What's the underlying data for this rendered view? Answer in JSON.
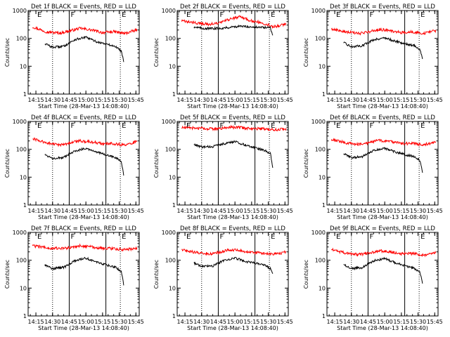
{
  "figure": {
    "background": "#ffffff",
    "axis_color": "#000000",
    "series_colors": {
      "events": "#000000",
      "lld": "#ff0000"
    }
  },
  "chart_data": [
    {
      "type": "line",
      "title": "Det 1f BLACK = Events, RED = LLD",
      "xlabel": "Start Time (28-Mar-13 14:08:40)",
      "ylabel": "Counts/sec",
      "x_tick_labels": [
        "14:15",
        "14:30",
        "14:45",
        "15:00",
        "15:15",
        "15:30",
        "15:45"
      ],
      "y_tick_labels": [
        "1",
        "10",
        "100",
        "1000"
      ],
      "ylim": [
        1,
        1000
      ],
      "log_y": true,
      "markers": [
        {
          "letter": "E",
          "time": "14:15"
        },
        {
          "letter": "F",
          "time": "14:45"
        },
        {
          "letter": "E",
          "time": "15:31"
        }
      ],
      "vertical_lines": [
        {
          "time": "14:30",
          "style": "dotted"
        },
        {
          "time": "14:45",
          "style": "solid"
        },
        {
          "time": "15:18",
          "style": "solid"
        },
        {
          "time": "15:31",
          "style": "dotted"
        }
      ],
      "series": [
        {
          "name": "LLD",
          "color": "#ff0000",
          "x": [
            "14:12",
            "14:25",
            "14:37",
            "14:45",
            "14:55",
            "15:05",
            "15:15",
            "15:25",
            "15:35",
            "15:46"
          ],
          "values": [
            260,
            170,
            155,
            185,
            230,
            200,
            160,
            175,
            150,
            200
          ]
        },
        {
          "name": "Events",
          "color": "#000000",
          "x_start": "14:23",
          "x_end": "15:34",
          "x": [
            "14:23",
            "14:30",
            "14:40",
            "14:50",
            "15:00",
            "15:10",
            "15:20",
            "15:27",
            "15:32",
            "15:34"
          ],
          "values": [
            65,
            48,
            52,
            90,
            110,
            75,
            60,
            50,
            35,
            15
          ]
        }
      ]
    },
    {
      "type": "line",
      "title": "Det 2f BLACK = Events, RED = LLD",
      "xlabel": "Start Time (28-Mar-13 14:08:40)",
      "ylabel": "Counts/sec",
      "x_tick_labels": [
        "14:15",
        "14:30",
        "14:45",
        "15:00",
        "15:15",
        "15:30",
        "15:45"
      ],
      "y_tick_labels": [
        "1",
        "10",
        "100",
        "1000"
      ],
      "ylim": [
        1,
        1000
      ],
      "log_y": true,
      "markers": [
        {
          "letter": "E",
          "time": "14:15"
        },
        {
          "letter": "F",
          "time": "14:45"
        },
        {
          "letter": "E",
          "time": "15:31"
        }
      ],
      "vertical_lines": [
        {
          "time": "14:30",
          "style": "dotted"
        },
        {
          "time": "14:45",
          "style": "solid"
        },
        {
          "time": "15:18",
          "style": "solid"
        },
        {
          "time": "15:31",
          "style": "dotted"
        }
      ],
      "series": [
        {
          "name": "LLD",
          "color": "#ff0000",
          "x": [
            "14:12",
            "14:25",
            "14:37",
            "14:45",
            "14:55",
            "15:05",
            "15:15",
            "15:25",
            "15:35",
            "15:46"
          ],
          "values": [
            420,
            360,
            320,
            350,
            480,
            600,
            420,
            360,
            260,
            330
          ]
        },
        {
          "name": "Events",
          "color": "#000000",
          "x_start": "14:23",
          "x_end": "15:34",
          "x": [
            "14:23",
            "14:30",
            "14:40",
            "14:50",
            "15:00",
            "15:10",
            "15:20",
            "15:27",
            "15:32",
            "15:34"
          ],
          "values": [
            260,
            230,
            225,
            235,
            265,
            270,
            250,
            245,
            240,
            120
          ]
        }
      ]
    },
    {
      "type": "line",
      "title": "Det 3f BLACK = Events, RED = LLD",
      "xlabel": "Start Time (28-Mar-13 14:08:40)",
      "ylabel": "Counts/sec",
      "x_tick_labels": [
        "14:15",
        "14:30",
        "14:45",
        "15:00",
        "15:15",
        "15:30",
        "15:45"
      ],
      "y_tick_labels": [
        "1",
        "10",
        "100",
        "1000"
      ],
      "ylim": [
        1,
        1000
      ],
      "log_y": true,
      "markers": [
        {
          "letter": "E",
          "time": "14:15"
        },
        {
          "letter": "F",
          "time": "14:45"
        },
        {
          "letter": "E",
          "time": "15:31"
        }
      ],
      "vertical_lines": [
        {
          "time": "14:30",
          "style": "dotted"
        },
        {
          "time": "14:45",
          "style": "solid"
        },
        {
          "time": "15:18",
          "style": "solid"
        },
        {
          "time": "15:31",
          "style": "dotted"
        }
      ],
      "series": [
        {
          "name": "LLD",
          "color": "#ff0000",
          "x": [
            "14:12",
            "14:25",
            "14:37",
            "14:45",
            "14:55",
            "15:05",
            "15:15",
            "15:25",
            "15:35",
            "15:46"
          ],
          "values": [
            220,
            170,
            150,
            170,
            210,
            190,
            160,
            170,
            150,
            190
          ]
        },
        {
          "name": "Events",
          "color": "#000000",
          "x_start": "14:23",
          "x_end": "15:34",
          "x": [
            "14:23",
            "14:30",
            "14:40",
            "14:50",
            "15:00",
            "15:10",
            "15:20",
            "15:27",
            "15:32",
            "15:34"
          ],
          "values": [
            70,
            50,
            55,
            90,
            105,
            78,
            62,
            55,
            38,
            18
          ]
        }
      ]
    },
    {
      "type": "line",
      "title": "Det 4f BLACK = Events, RED = LLD",
      "xlabel": "Start Time (28-Mar-13 14:08:40)",
      "ylabel": "Counts/sec",
      "x_tick_labels": [
        "14:15",
        "14:30",
        "14:45",
        "15:00",
        "15:15",
        "15:30",
        "15:45"
      ],
      "y_tick_labels": [
        "1",
        "10",
        "100",
        "1000"
      ],
      "ylim": [
        1,
        1000
      ],
      "log_y": true,
      "markers": [
        {
          "letter": "E",
          "time": "14:15"
        },
        {
          "letter": "F",
          "time": "14:45"
        },
        {
          "letter": "E",
          "time": "15:31"
        }
      ],
      "vertical_lines": [
        {
          "time": "14:30",
          "style": "dotted"
        },
        {
          "time": "14:45",
          "style": "solid"
        },
        {
          "time": "15:18",
          "style": "solid"
        },
        {
          "time": "15:31",
          "style": "dotted"
        }
      ],
      "series": [
        {
          "name": "LLD",
          "color": "#ff0000",
          "x": [
            "14:12",
            "14:25",
            "14:37",
            "14:45",
            "14:55",
            "15:05",
            "15:15",
            "15:25",
            "15:35",
            "15:46"
          ],
          "values": [
            240,
            170,
            140,
            170,
            200,
            185,
            160,
            160,
            140,
            190
          ]
        },
        {
          "name": "Events",
          "color": "#000000",
          "x_start": "14:23",
          "x_end": "15:34",
          "x": [
            "14:23",
            "14:30",
            "14:40",
            "14:50",
            "15:00",
            "15:10",
            "15:20",
            "15:27",
            "15:32",
            "15:34"
          ],
          "values": [
            65,
            48,
            50,
            85,
            110,
            80,
            60,
            50,
            35,
            12
          ]
        }
      ]
    },
    {
      "type": "line",
      "title": "Det 5f BLACK = Events, RED = LLD",
      "xlabel": "Start Time (28-Mar-13 14:08:40)",
      "ylabel": "Counts/sec",
      "x_tick_labels": [
        "14:15",
        "14:30",
        "14:45",
        "15:00",
        "15:15",
        "15:30",
        "15:45"
      ],
      "y_tick_labels": [
        "1",
        "10",
        "100",
        "1000"
      ],
      "ylim": [
        1,
        1000
      ],
      "log_y": true,
      "markers": [
        {
          "letter": "E",
          "time": "14:15"
        },
        {
          "letter": "F",
          "time": "14:45"
        },
        {
          "letter": "E",
          "time": "15:31"
        }
      ],
      "vertical_lines": [
        {
          "time": "14:30",
          "style": "dotted"
        },
        {
          "time": "14:45",
          "style": "solid"
        },
        {
          "time": "15:18",
          "style": "solid"
        },
        {
          "time": "15:31",
          "style": "dotted"
        }
      ],
      "series": [
        {
          "name": "LLD",
          "color": "#ff0000",
          "x": [
            "14:12",
            "14:25",
            "14:37",
            "14:45",
            "14:55",
            "15:05",
            "15:15",
            "15:25",
            "15:35",
            "15:46"
          ],
          "values": [
            600,
            580,
            540,
            560,
            620,
            600,
            560,
            540,
            500,
            550
          ]
        },
        {
          "name": "Events",
          "color": "#000000",
          "x_start": "14:23",
          "x_end": "15:34",
          "x": [
            "14:23",
            "14:30",
            "14:40",
            "14:50",
            "15:00",
            "15:10",
            "15:20",
            "15:27",
            "15:32",
            "15:34"
          ],
          "values": [
            150,
            120,
            125,
            160,
            190,
            140,
            110,
            90,
            70,
            20
          ]
        }
      ]
    },
    {
      "type": "line",
      "title": "Det 6f BLACK = Events, RED = LLD",
      "xlabel": "Start Time (28-Mar-13 14:08:40)",
      "ylabel": "Counts/sec",
      "x_tick_labels": [
        "14:15",
        "14:30",
        "14:45",
        "15:00",
        "15:15",
        "15:30",
        "15:45"
      ],
      "y_tick_labels": [
        "1",
        "10",
        "100",
        "1000"
      ],
      "ylim": [
        1,
        1000
      ],
      "log_y": true,
      "markers": [
        {
          "letter": "E",
          "time": "14:15"
        },
        {
          "letter": "F",
          "time": "14:45"
        },
        {
          "letter": "E",
          "time": "15:31"
        }
      ],
      "vertical_lines": [
        {
          "time": "14:30",
          "style": "dotted"
        },
        {
          "time": "14:45",
          "style": "solid"
        },
        {
          "time": "15:18",
          "style": "solid"
        },
        {
          "time": "15:31",
          "style": "dotted"
        }
      ],
      "series": [
        {
          "name": "LLD",
          "color": "#ff0000",
          "x": [
            "14:12",
            "14:25",
            "14:37",
            "14:45",
            "14:55",
            "15:05",
            "15:15",
            "15:25",
            "15:35",
            "15:46"
          ],
          "values": [
            230,
            170,
            150,
            170,
            210,
            190,
            160,
            165,
            145,
            180
          ]
        },
        {
          "name": "Events",
          "color": "#000000",
          "x_start": "14:23",
          "x_end": "15:34",
          "x": [
            "14:23",
            "14:30",
            "14:40",
            "14:50",
            "15:00",
            "15:10",
            "15:20",
            "15:27",
            "15:32",
            "15:34"
          ],
          "values": [
            70,
            50,
            55,
            90,
            108,
            80,
            62,
            55,
            38,
            14
          ]
        }
      ]
    },
    {
      "type": "line",
      "title": "Det 7f BLACK = Events, RED = LLD",
      "xlabel": "Start Time (28-Mar-13 14:08:40)",
      "ylabel": "Counts/sec",
      "x_tick_labels": [
        "14:15",
        "14:30",
        "14:45",
        "15:00",
        "15:15",
        "15:30",
        "15:45"
      ],
      "y_tick_labels": [
        "1",
        "10",
        "100",
        "1000"
      ],
      "ylim": [
        1,
        1000
      ],
      "log_y": true,
      "markers": [
        {
          "letter": "E",
          "time": "14:15"
        },
        {
          "letter": "F",
          "time": "14:45"
        },
        {
          "letter": "E",
          "time": "15:31"
        }
      ],
      "vertical_lines": [
        {
          "time": "14:30",
          "style": "dotted"
        },
        {
          "time": "14:45",
          "style": "solid"
        },
        {
          "time": "15:18",
          "style": "solid"
        },
        {
          "time": "15:31",
          "style": "dotted"
        }
      ],
      "series": [
        {
          "name": "LLD",
          "color": "#ff0000",
          "x": [
            "14:12",
            "14:25",
            "14:37",
            "14:45",
            "14:55",
            "15:05",
            "15:15",
            "15:25",
            "15:35",
            "15:46"
          ],
          "values": [
            330,
            280,
            260,
            280,
            330,
            300,
            270,
            260,
            240,
            270
          ]
        },
        {
          "name": "Events",
          "color": "#000000",
          "x_start": "14:23",
          "x_end": "15:34",
          "x": [
            "14:23",
            "14:30",
            "14:40",
            "14:50",
            "15:00",
            "15:10",
            "15:20",
            "15:27",
            "15:32",
            "15:34"
          ],
          "values": [
            70,
            50,
            55,
            95,
            120,
            85,
            65,
            55,
            40,
            13
          ]
        }
      ]
    },
    {
      "type": "line",
      "title": "Det 8f BLACK = Events, RED = LLD",
      "xlabel": "Start Time (28-Mar-13 14:08:40)",
      "ylabel": "Counts/sec",
      "x_tick_labels": [
        "14:15",
        "14:30",
        "14:45",
        "15:00",
        "15:15",
        "15:30",
        "15:45"
      ],
      "y_tick_labels": [
        "1",
        "10",
        "100",
        "1000"
      ],
      "ylim": [
        1,
        1000
      ],
      "log_y": true,
      "markers": [
        {
          "letter": "E",
          "time": "14:15"
        },
        {
          "letter": "F",
          "time": "14:45"
        },
        {
          "letter": "E",
          "time": "15:31"
        }
      ],
      "vertical_lines": [
        {
          "time": "14:30",
          "style": "dotted"
        },
        {
          "time": "14:45",
          "style": "solid"
        },
        {
          "time": "15:18",
          "style": "solid"
        },
        {
          "time": "15:31",
          "style": "dotted"
        }
      ],
      "series": [
        {
          "name": "LLD",
          "color": "#ff0000",
          "x": [
            "14:12",
            "14:25",
            "14:37",
            "14:45",
            "14:55",
            "15:05",
            "15:15",
            "15:25",
            "15:35",
            "15:46"
          ],
          "values": [
            240,
            190,
            170,
            190,
            240,
            220,
            190,
            180,
            160,
            200
          ]
        },
        {
          "name": "Events",
          "color": "#000000",
          "x_start": "14:23",
          "x_end": "15:34",
          "x": [
            "14:23",
            "14:30",
            "14:40",
            "14:50",
            "15:00",
            "15:10",
            "15:20",
            "15:27",
            "15:32",
            "15:34"
          ],
          "values": [
            80,
            60,
            62,
            100,
            120,
            90,
            75,
            65,
            50,
            30
          ]
        }
      ]
    },
    {
      "type": "line",
      "title": "Det 9f BLACK = Events, RED = LLD",
      "xlabel": "Start Time (28-Mar-13 14:08:40)",
      "ylabel": "Counts/sec",
      "x_tick_labels": [
        "14:15",
        "14:30",
        "14:45",
        "15:00",
        "15:15",
        "15:30",
        "15:45"
      ],
      "y_tick_labels": [
        "1",
        "10",
        "100",
        "1000"
      ],
      "ylim": [
        1,
        1000
      ],
      "log_y": true,
      "markers": [
        {
          "letter": "E",
          "time": "14:15"
        },
        {
          "letter": "F",
          "time": "14:45"
        },
        {
          "letter": "E",
          "time": "15:31"
        }
      ],
      "vertical_lines": [
        {
          "time": "14:30",
          "style": "dotted"
        },
        {
          "time": "14:45",
          "style": "solid"
        },
        {
          "time": "15:18",
          "style": "solid"
        },
        {
          "time": "15:31",
          "style": "dotted"
        }
      ],
      "series": [
        {
          "name": "LLD",
          "color": "#ff0000",
          "x": [
            "14:12",
            "14:25",
            "14:37",
            "14:45",
            "14:55",
            "15:05",
            "15:15",
            "15:25",
            "15:35",
            "15:46"
          ],
          "values": [
            240,
            180,
            160,
            180,
            220,
            200,
            170,
            175,
            150,
            180
          ]
        },
        {
          "name": "Events",
          "color": "#000000",
          "x_start": "14:23",
          "x_end": "15:34",
          "x": [
            "14:23",
            "14:30",
            "14:40",
            "14:50",
            "15:00",
            "15:10",
            "15:20",
            "15:27",
            "15:32",
            "15:34"
          ],
          "values": [
            70,
            50,
            55,
            95,
            115,
            80,
            60,
            50,
            35,
            14
          ]
        }
      ]
    }
  ]
}
